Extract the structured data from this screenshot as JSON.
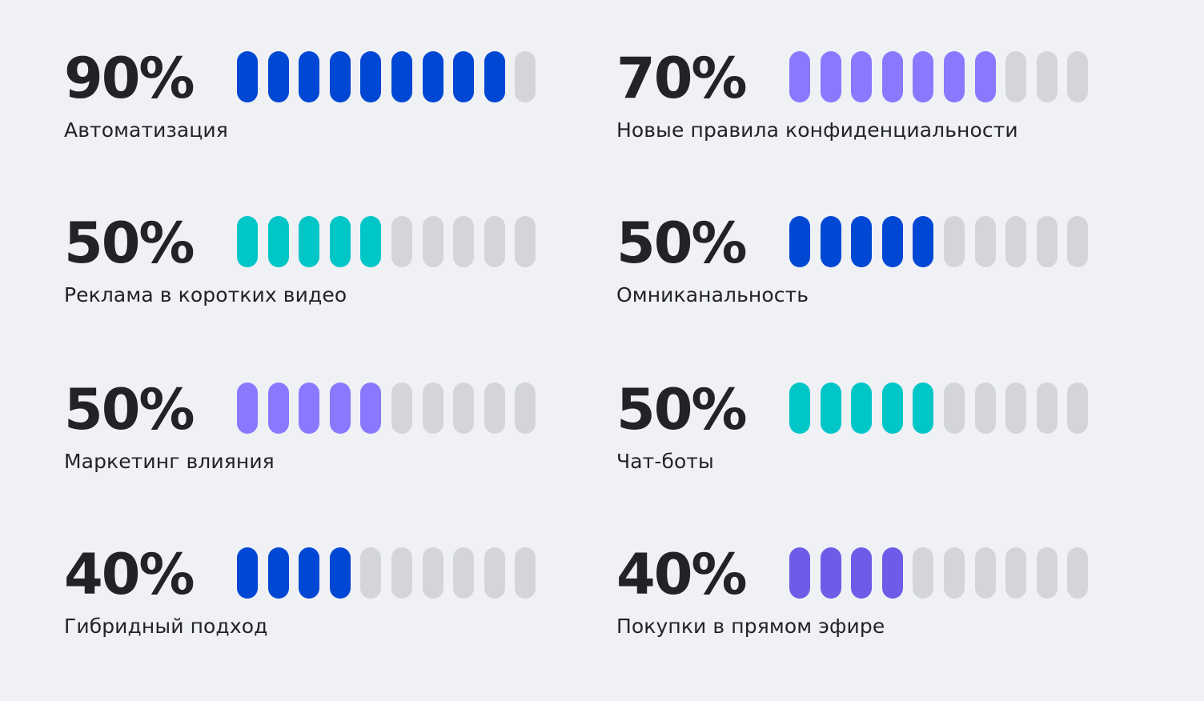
{
  "colors": {
    "empty_segment": "#d3d5db",
    "value_text": "#222326",
    "background": "#eff1f5"
  },
  "chart_data": {
    "type": "bar",
    "segments_per_bar": 10,
    "items": [
      {
        "value_label": "90%",
        "value": 90,
        "label": "Автоматизация",
        "color": "#0047d4"
      },
      {
        "value_label": "70%",
        "value": 70,
        "label": "Новые правила конфиденциальности",
        "color": "#8979ff"
      },
      {
        "value_label": "50%",
        "value": 50,
        "label": "Реклама в коротких видео",
        "color": "#00c6c8"
      },
      {
        "value_label": "50%",
        "value": 50,
        "label": "Омниканальность",
        "color": "#0047d4"
      },
      {
        "value_label": "50%",
        "value": 50,
        "label": "Маркетинг влияния",
        "color": "#8979ff"
      },
      {
        "value_label": "50%",
        "value": 50,
        "label": "Чат-боты",
        "color": "#00c6c8"
      },
      {
        "value_label": "40%",
        "value": 40,
        "label": "Гибридный подход",
        "color": "#0047d4"
      },
      {
        "value_label": "40%",
        "value": 40,
        "label": "Покупки в прямом эфире",
        "color": "#6c5ce7"
      }
    ]
  }
}
